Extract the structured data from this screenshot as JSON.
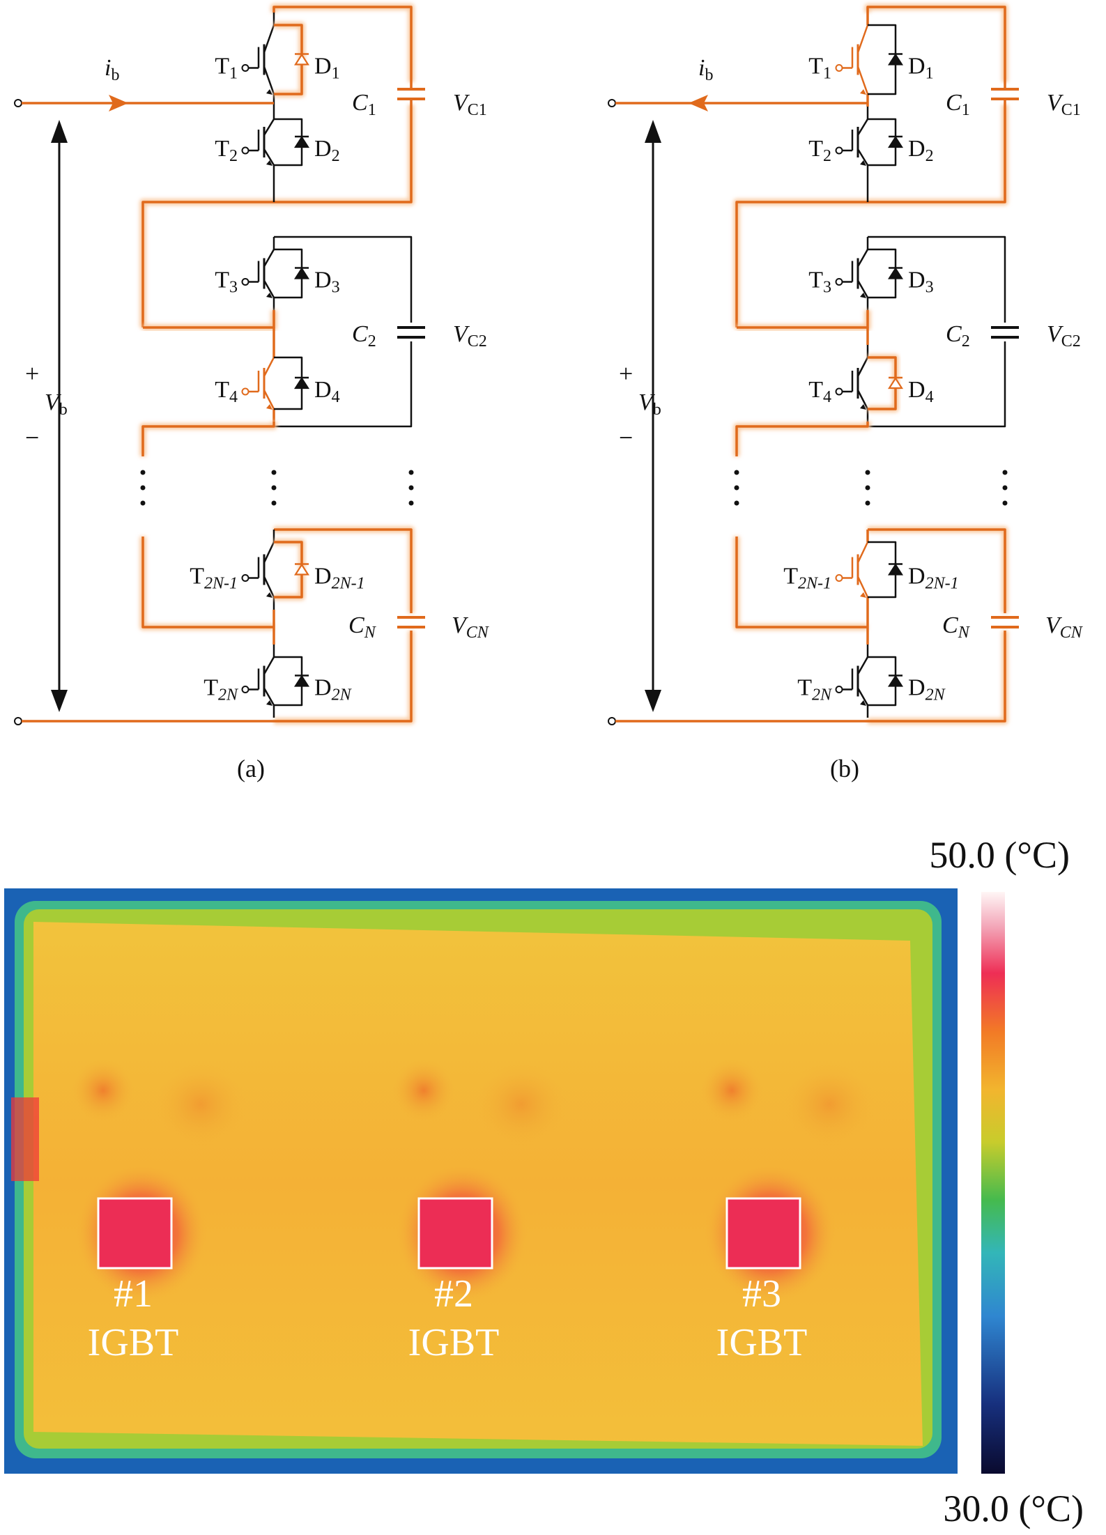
{
  "colors": {
    "highlight": "#e06a1c",
    "glow": "#f9c89e",
    "wire": "#111111",
    "thermal_board": "#f3b035",
    "thermal_hot": "#ec2d55",
    "thermal_frame": "#1a62b4"
  },
  "circuits": [
    {
      "caption": "(a)",
      "current_label": "i",
      "current_sub": "b",
      "current_direction": "right",
      "voltage_plus": "+",
      "voltage_minus": "−",
      "voltage_label": "V",
      "voltage_sub": "b",
      "cells": [
        {
          "cap": "C",
          "cap_sub": "1",
          "v": "V",
          "v_sub": "C1",
          "upper_t": "T",
          "upper_t_sub": "1",
          "upper_d": "D",
          "upper_d_sub": "1",
          "lower_t": "T",
          "lower_t_sub": "2",
          "lower_d": "D",
          "lower_d_sub": "2"
        },
        {
          "cap": "C",
          "cap_sub": "2",
          "v": "V",
          "v_sub": "C2",
          "upper_t": "T",
          "upper_t_sub": "3",
          "upper_d": "D",
          "upper_d_sub": "3",
          "lower_t": "T",
          "lower_t_sub": "4",
          "lower_d": "D",
          "lower_d_sub": "4"
        },
        {
          "cap": "C",
          "cap_sub": "N",
          "v": "V",
          "v_sub": "CN",
          "upper_t": "T",
          "upper_t_sub": "2N-1",
          "upper_d": "D",
          "upper_d_sub": "2N-1",
          "lower_t": "T",
          "lower_t_sub": "2N",
          "lower_d": "D",
          "lower_d_sub": "2N"
        }
      ]
    },
    {
      "caption": "(b)",
      "current_label": "i",
      "current_sub": "b",
      "current_direction": "left",
      "voltage_plus": "+",
      "voltage_minus": "−",
      "voltage_label": "V",
      "voltage_sub": "b",
      "cells": [
        {
          "cap": "C",
          "cap_sub": "1",
          "v": "V",
          "v_sub": "C1",
          "upper_t": "T",
          "upper_t_sub": "1",
          "upper_d": "D",
          "upper_d_sub": "1",
          "lower_t": "T",
          "lower_t_sub": "2",
          "lower_d": "D",
          "lower_d_sub": "2"
        },
        {
          "cap": "C",
          "cap_sub": "2",
          "v": "V",
          "v_sub": "C2",
          "upper_t": "T",
          "upper_t_sub": "3",
          "upper_d": "D",
          "upper_d_sub": "3",
          "lower_t": "T",
          "lower_t_sub": "4",
          "lower_d": "D",
          "lower_d_sub": "4"
        },
        {
          "cap": "C",
          "cap_sub": "N",
          "v": "V",
          "v_sub": "CN",
          "upper_t": "T",
          "upper_t_sub": "2N-1",
          "upper_d": "D",
          "upper_d_sub": "2N-1",
          "lower_t": "T",
          "lower_t_sub": "2N",
          "lower_d": "D",
          "lower_d_sub": "2N"
        }
      ]
    }
  ],
  "thermal": {
    "scale_max": "50.0 (°C)",
    "scale_min": "30.0 (°C)",
    "devices": [
      {
        "number": "#1",
        "type": "IGBT"
      },
      {
        "number": "#2",
        "type": "IGBT"
      },
      {
        "number": "#3",
        "type": "IGBT"
      }
    ]
  }
}
